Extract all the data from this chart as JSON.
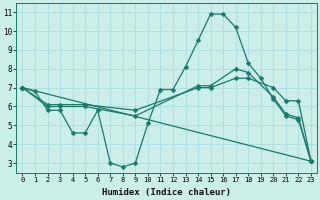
{
  "xlabel": "Humidex (Indice chaleur)",
  "bg_color": "#cceee8",
  "grid_color": "#aadddd",
  "line_color": "#1a7a6a",
  "series": [
    {
      "x": [
        0,
        1,
        2,
        3,
        4,
        5,
        6,
        7,
        8,
        9,
        10,
        11,
        12,
        13,
        14,
        15,
        16,
        17,
        18,
        19,
        20,
        21,
        22,
        23
      ],
      "y": [
        7.0,
        6.8,
        5.8,
        5.8,
        4.6,
        4.6,
        5.8,
        3.0,
        2.8,
        3.0,
        5.1,
        6.9,
        6.9,
        8.1,
        9.5,
        10.9,
        10.9,
        10.2,
        8.3,
        7.5,
        6.4,
        5.5,
        5.3,
        3.1
      ]
    },
    {
      "x": [
        0,
        2,
        3,
        5,
        9,
        14,
        15,
        17,
        18,
        20,
        21,
        22,
        23
      ],
      "y": [
        7.0,
        6.1,
        6.1,
        6.1,
        5.8,
        7.0,
        7.0,
        7.5,
        7.5,
        7.0,
        6.3,
        6.3,
        3.1
      ]
    },
    {
      "x": [
        0,
        2,
        3,
        5,
        9,
        14,
        15,
        17,
        18,
        20,
        21,
        22,
        23
      ],
      "y": [
        7.0,
        6.0,
        6.0,
        6.0,
        5.5,
        7.1,
        7.1,
        8.0,
        7.8,
        6.5,
        5.6,
        5.4,
        3.1
      ]
    },
    {
      "x": [
        0,
        23
      ],
      "y": [
        7.0,
        3.1
      ]
    }
  ],
  "xlim": [
    -0.5,
    23.5
  ],
  "ylim": [
    2.5,
    11.5
  ],
  "yticks": [
    3,
    4,
    5,
    6,
    7,
    8,
    9,
    10,
    11
  ],
  "xticks": [
    0,
    1,
    2,
    3,
    4,
    5,
    6,
    7,
    8,
    9,
    10,
    11,
    12,
    13,
    14,
    15,
    16,
    17,
    18,
    19,
    20,
    21,
    22,
    23
  ],
  "markersize": 2.5,
  "linewidth": 0.9,
  "figwidth": 3.2,
  "figheight": 2.0,
  "dpi": 100
}
